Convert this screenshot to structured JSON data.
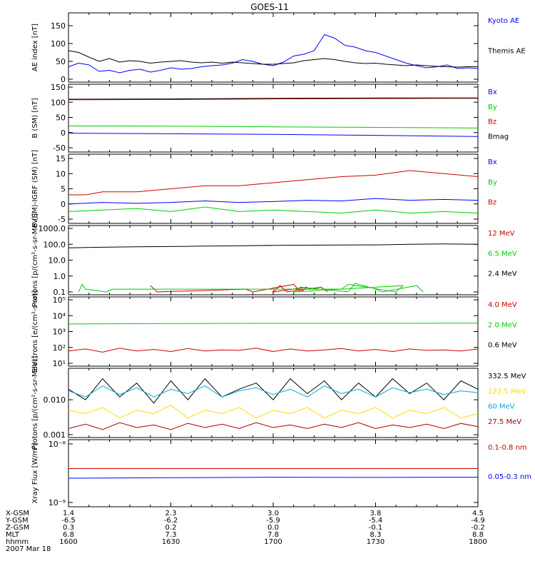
{
  "title": "GOES-11",
  "date_label": "2007 Mar 18",
  "colors": {
    "black": "#000000",
    "blue": "#0000ff",
    "green": "#00cc00",
    "red": "#cc0000",
    "darkred": "#aa0000",
    "yellow": "#ffdd00",
    "cyan": "#00aadd"
  },
  "footer": {
    "row_labels": [
      "X-GSM",
      "Y-GSM",
      "Z-GSM",
      "MLT",
      "hhmm"
    ],
    "columns": [
      [
        "1.4",
        "-6.5",
        "0.3",
        "6.8",
        "1600"
      ],
      [
        "2.3",
        "-6.2",
        "0.2",
        "7.3",
        "1630"
      ],
      [
        "3.0",
        "-5.9",
        "0.0",
        "7.8",
        "1700"
      ],
      [
        "3.8",
        "-5.4",
        "-0.1",
        "8.3",
        "1730"
      ],
      [
        "4.5",
        "-4.9",
        "-0.2",
        "8.8",
        "1800"
      ]
    ]
  },
  "chart_data": [
    {
      "type": "line",
      "ylabel": "AE index [nT]",
      "ylim": [
        0,
        150
      ],
      "ticks": [
        "0",
        "50",
        "100",
        "150"
      ],
      "tick_values": [
        0,
        50,
        100,
        150
      ],
      "series": [
        {
          "name": "Kyoto AE",
          "color": "#0000ff",
          "x": [
            1600,
            1603,
            1606,
            1609,
            1612,
            1615,
            1618,
            1621,
            1624,
            1627,
            1630,
            1633,
            1636,
            1639,
            1642,
            1645,
            1648,
            1651,
            1654,
            1657,
            1700,
            1703,
            1706,
            1709,
            1712,
            1715,
            1718,
            1721,
            1724,
            1727,
            1730,
            1733,
            1736,
            1739,
            1742,
            1745,
            1748,
            1751,
            1754,
            1757,
            1800
          ],
          "y": [
            35,
            45,
            40,
            22,
            25,
            18,
            25,
            28,
            20,
            25,
            32,
            28,
            30,
            35,
            38,
            40,
            45,
            55,
            50,
            42,
            38,
            48,
            65,
            70,
            80,
            125,
            115,
            95,
            90,
            80,
            75,
            65,
            55,
            45,
            38,
            32,
            35,
            40,
            30,
            32,
            30
          ]
        },
        {
          "name": "Themis AE",
          "color": "#000000",
          "x": [
            1600,
            1603,
            1606,
            1609,
            1612,
            1615,
            1618,
            1621,
            1624,
            1627,
            1630,
            1633,
            1636,
            1639,
            1642,
            1645,
            1648,
            1651,
            1654,
            1657,
            1700,
            1703,
            1706,
            1709,
            1712,
            1715,
            1718,
            1721,
            1724,
            1727,
            1730,
            1733,
            1736,
            1739,
            1742,
            1745,
            1748,
            1751,
            1754,
            1757,
            1800
          ],
          "y": [
            80,
            75,
            62,
            50,
            58,
            48,
            52,
            50,
            45,
            48,
            50,
            52,
            48,
            46,
            48,
            45,
            48,
            46,
            44,
            42,
            42,
            44,
            46,
            52,
            55,
            58,
            55,
            50,
            46,
            44,
            45,
            42,
            40,
            38,
            40,
            38,
            36,
            35,
            34,
            35,
            35
          ]
        }
      ]
    },
    {
      "type": "line",
      "ylabel": "B (SM) [nT]",
      "ylim": [
        -50,
        150
      ],
      "ticks": [
        "-50",
        "0",
        "50",
        "100",
        "150"
      ],
      "tick_values": [
        -50,
        0,
        50,
        100,
        150
      ],
      "series": [
        {
          "name": "Bx",
          "color": "#0000ff",
          "x": [
            1600,
            1630,
            1700,
            1730,
            1800
          ],
          "y": [
            -2,
            -4,
            -6,
            -9,
            -13
          ]
        },
        {
          "name": "By",
          "color": "#00cc00",
          "x": [
            1600,
            1630,
            1700,
            1730,
            1800
          ],
          "y": [
            22,
            21,
            19,
            17,
            15
          ]
        },
        {
          "name": "Bz",
          "color": "#cc0000",
          "x": [
            1600,
            1630,
            1700,
            1730,
            1800
          ],
          "y": [
            108,
            109,
            111,
            112,
            113
          ]
        },
        {
          "name": "Bmag",
          "color": "#000000",
          "x": [
            1600,
            1630,
            1700,
            1730,
            1800
          ],
          "y": [
            110,
            111,
            113,
            114,
            114
          ]
        }
      ]
    },
    {
      "type": "line",
      "ylabel": "B (SM)-IGRF (SM) [nT]",
      "ylim": [
        -5,
        15
      ],
      "ticks": [
        "-5",
        "0",
        "5",
        "10",
        "15"
      ],
      "tick_values": [
        -5,
        0,
        5,
        10,
        15
      ],
      "series": [
        {
          "name": "Bx",
          "color": "#0000ff",
          "x": [
            1600,
            1610,
            1620,
            1630,
            1640,
            1650,
            1700,
            1710,
            1720,
            1730,
            1740,
            1750,
            1800
          ],
          "y": [
            0,
            0.5,
            0.2,
            0.5,
            1,
            0.5,
            0.8,
            1.2,
            1,
            1.8,
            1.2,
            1.5,
            1.2
          ]
        },
        {
          "name": "By",
          "color": "#00cc00",
          "x": [
            1600,
            1610,
            1620,
            1630,
            1640,
            1650,
            1700,
            1710,
            1720,
            1730,
            1740,
            1750,
            1800
          ],
          "y": [
            -2.5,
            -2,
            -1.5,
            -2.5,
            -1,
            -2.5,
            -2,
            -2.5,
            -3,
            -2,
            -3,
            -2.5,
            -3
          ]
        },
        {
          "name": "Bz",
          "color": "#cc0000",
          "x": [
            1600,
            1605,
            1610,
            1620,
            1630,
            1640,
            1650,
            1700,
            1710,
            1720,
            1730,
            1740,
            1750,
            1800
          ],
          "y": [
            3,
            3,
            4,
            4,
            5,
            6,
            6,
            7,
            8,
            9,
            9.5,
            11,
            10,
            9
          ]
        }
      ]
    },
    {
      "type": "line",
      "scale": "log",
      "ylabel": "Protons [p/(cm²-s-sr-MeV)]",
      "ylim": [
        0.1,
        1000
      ],
      "ticks": [
        "0.1",
        "1.0",
        "10.0",
        "100.0",
        "1000.0"
      ],
      "tick_values": [
        0.1,
        1,
        10,
        100,
        1000
      ],
      "series": [
        {
          "name": "12 MeV",
          "color": "#cc0000",
          "x": [
            1624,
            1626,
            1652,
            1654,
            1666,
            1668,
            1670,
            1700,
            1702,
            1704,
            1714,
            1716
          ],
          "y": [
            0.25,
            0.1,
            0.15,
            0.1,
            0.3,
            0.1,
            0.2,
            0.1,
            0.25,
            0.1,
            0.2,
            0.1
          ]
        },
        {
          "name": "6.5 MeV",
          "color": "#00cc00",
          "x": [
            1603,
            1604,
            1605,
            1611,
            1613,
            1680,
            1682,
            1696,
            1698,
            1706,
            1708,
            1722,
            1724,
            1730,
            1732,
            1742,
            1744
          ],
          "y": [
            0.1,
            0.3,
            0.15,
            0.1,
            0.15,
            0.15,
            0.3,
            0.1,
            0.25,
            0.1,
            0.2,
            0.1,
            0.35,
            0.15,
            0.1,
            0.25,
            0.1
          ]
        },
        {
          "name": "2.4 MeV",
          "color": "#000000",
          "x": [
            1600,
            1610,
            1620,
            1630,
            1640,
            1650,
            1700,
            1710,
            1720,
            1730,
            1740,
            1750,
            1800
          ],
          "y": [
            60,
            65,
            70,
            72,
            78,
            80,
            85,
            88,
            90,
            92,
            100,
            105,
            100
          ]
        }
      ]
    },
    {
      "type": "line",
      "scale": "log",
      "ylabel": "Electrons [e/(cm²-s-sr)]",
      "ylim": [
        10,
        100000
      ],
      "ticks": [
        "10¹",
        "10²",
        "10³",
        "10⁴",
        "10⁵"
      ],
      "tick_values": [
        10,
        100,
        1000,
        10000,
        100000
      ],
      "series": [
        {
          "name": "4.0 MeV",
          "color": "#cc0000",
          "x": [
            1600,
            1605,
            1610,
            1615,
            1620,
            1625,
            1630,
            1635,
            1640,
            1645,
            1650,
            1655,
            1700,
            1705,
            1710,
            1715,
            1720,
            1725,
            1730,
            1735,
            1740,
            1745,
            1750,
            1755,
            1800
          ],
          "y": [
            60,
            80,
            50,
            90,
            60,
            75,
            55,
            85,
            60,
            70,
            65,
            90,
            55,
            80,
            60,
            70,
            85,
            60,
            75,
            55,
            80,
            65,
            70,
            60,
            80
          ]
        },
        {
          "name": "2.0 MeV",
          "color": "#00cc00",
          "x": [
            1600,
            1630,
            1700,
            1730,
            1800
          ],
          "y": [
            3000,
            3200,
            3300,
            3300,
            3400
          ]
        },
        {
          "name": "0.6 MeV",
          "color": "#000000",
          "x": [],
          "y": []
        }
      ]
    },
    {
      "type": "line",
      "scale": "log",
      "ylabel": "Protons [p/(cm²-s-sr-MeV)]",
      "ylim": [
        0.001,
        0.06
      ],
      "ticks": [
        "0.001",
        "0.010"
      ],
      "tick_values": [
        0.001,
        0.01
      ],
      "series": [
        {
          "name": "332.5 MeV",
          "color": "#000000",
          "x": [
            1600,
            1605,
            1610,
            1615,
            1620,
            1625,
            1630,
            1635,
            1640,
            1645,
            1650,
            1655,
            1700,
            1705,
            1710,
            1715,
            1720,
            1725,
            1730,
            1735,
            1740,
            1745,
            1750,
            1755,
            1800
          ],
          "y": [
            0.02,
            0.01,
            0.04,
            0.012,
            0.03,
            0.008,
            0.035,
            0.01,
            0.04,
            0.012,
            0.02,
            0.03,
            0.01,
            0.04,
            0.015,
            0.035,
            0.01,
            0.03,
            0.012,
            0.04,
            0.015,
            0.03,
            0.01,
            0.035,
            0.02
          ]
        },
        {
          "name": "122.5 MeV",
          "color": "#ffdd00",
          "x": [
            1600,
            1605,
            1610,
            1615,
            1620,
            1625,
            1630,
            1635,
            1640,
            1645,
            1650,
            1655,
            1700,
            1705,
            1710,
            1715,
            1720,
            1725,
            1730,
            1735,
            1740,
            1745,
            1750,
            1755,
            1800
          ],
          "y": [
            0.005,
            0.004,
            0.006,
            0.003,
            0.005,
            0.004,
            0.007,
            0.003,
            0.005,
            0.004,
            0.006,
            0.003,
            0.005,
            0.004,
            0.006,
            0.003,
            0.005,
            0.004,
            0.006,
            0.003,
            0.005,
            0.004,
            0.006,
            0.003,
            0.004
          ]
        },
        {
          "name": "60 MeV",
          "color": "#00aadd",
          "x": [
            1600,
            1605,
            1610,
            1615,
            1620,
            1625,
            1630,
            1635,
            1640,
            1645,
            1650,
            1655,
            1700,
            1705,
            1710,
            1715,
            1720,
            1725,
            1730,
            1735,
            1740,
            1745,
            1750,
            1755,
            1800
          ],
          "y": [
            0.018,
            0.012,
            0.025,
            0.014,
            0.022,
            0.012,
            0.02,
            0.015,
            0.025,
            0.012,
            0.018,
            0.022,
            0.014,
            0.02,
            0.012,
            0.025,
            0.015,
            0.02,
            0.012,
            0.022,
            0.016,
            0.02,
            0.014,
            0.018,
            0.016
          ]
        },
        {
          "name": "27.5 MeV",
          "color": "#aa0000",
          "x": [
            1600,
            1605,
            1610,
            1615,
            1620,
            1625,
            1630,
            1635,
            1640,
            1645,
            1650,
            1655,
            1700,
            1705,
            1710,
            1715,
            1720,
            1725,
            1730,
            1735,
            1740,
            1745,
            1750,
            1755,
            1800
          ],
          "y": [
            0.0015,
            0.002,
            0.0014,
            0.0022,
            0.0016,
            0.0019,
            0.0014,
            0.0021,
            0.0016,
            0.002,
            0.0015,
            0.0022,
            0.0016,
            0.0019,
            0.0015,
            0.002,
            0.0016,
            0.0022,
            0.0015,
            0.0019,
            0.0016,
            0.002,
            0.0015,
            0.0021,
            0.0017
          ]
        }
      ]
    },
    {
      "type": "line",
      "scale": "log",
      "ylabel": "Xray Flux [W/m²]",
      "ylim": [
        1e-09,
        1e-08
      ],
      "ticks": [
        "10⁻⁸",
        "10⁻⁹"
      ],
      "tick_values": [
        1e-08,
        1e-09
      ],
      "series": [
        {
          "name": "0.1-0.8 nm",
          "color": "#cc0000",
          "x": [
            1600,
            1800
          ],
          "y": [
            3.8e-09,
            3.8e-09
          ]
        },
        {
          "name": "0.05-0.3 nm",
          "color": "#0000ff",
          "x": [
            1600,
            1630,
            1700,
            1730,
            1800
          ],
          "y": [
            2.6e-09,
            2.65e-09,
            2.7e-09,
            2.68e-09,
            2.7e-09
          ]
        }
      ]
    }
  ]
}
